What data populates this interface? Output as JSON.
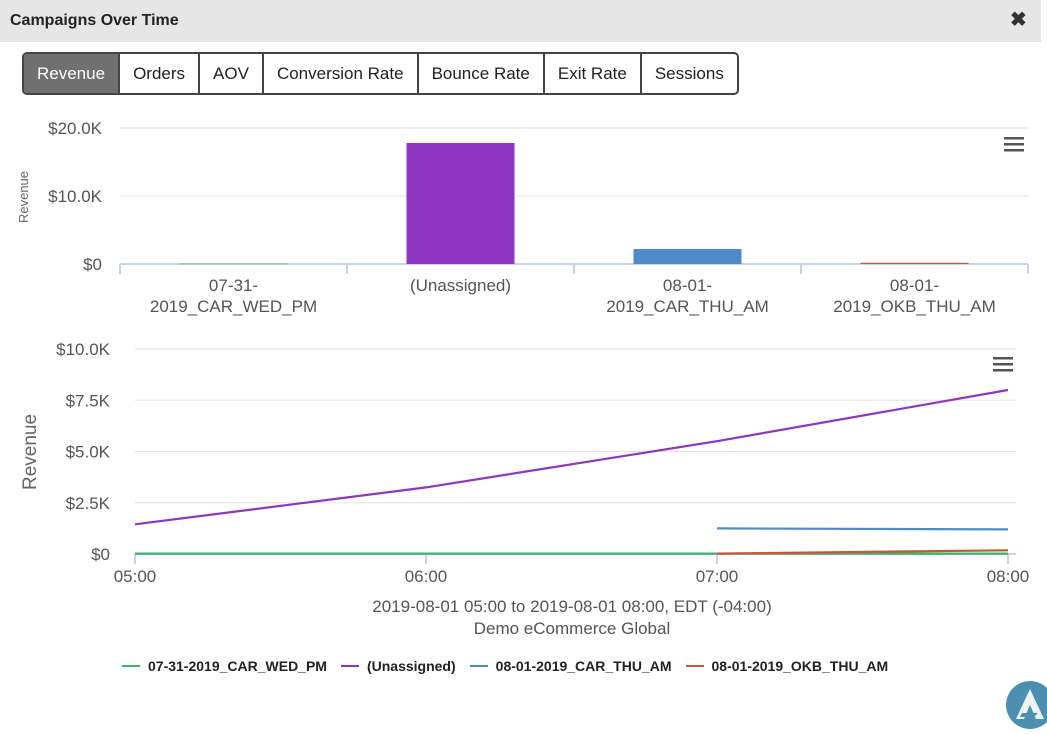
{
  "header": {
    "title": "Campaigns Over Time",
    "close_glyph": "✖"
  },
  "tabs": [
    {
      "label": "Revenue",
      "active": true
    },
    {
      "label": "Orders",
      "active": false
    },
    {
      "label": "AOV",
      "active": false
    },
    {
      "label": "Conversion Rate",
      "active": false
    },
    {
      "label": "Bounce Rate",
      "active": false
    },
    {
      "label": "Exit Rate",
      "active": false
    },
    {
      "label": "Sessions",
      "active": false
    }
  ],
  "colors": {
    "07-31-2019_CAR_WED_PM": "#3cb371",
    "(Unassigned)": "#8e35c1",
    "08-01-2019_CAR_THU_AM": "#4f8bc9",
    "08-01-2019_OKB_THU_AM": "#c8573a"
  },
  "menu_icon": "hamburger-menu-icon",
  "chart_data": [
    {
      "type": "bar",
      "ylabel": "Revenue",
      "ylim": [
        0,
        20000
      ],
      "y_ticks": [
        "$0",
        "$10.0K",
        "$20.0K"
      ],
      "categories": [
        [
          "07-31-",
          "2019_CAR_WED_PM"
        ],
        [
          "(Unassigned)"
        ],
        [
          "08-01-",
          "2019_CAR_THU_AM"
        ],
        [
          "08-01-",
          "2019_OKB_THU_AM"
        ]
      ],
      "series_keys": [
        "07-31-2019_CAR_WED_PM",
        "(Unassigned)",
        "08-01-2019_CAR_THU_AM",
        "08-01-2019_OKB_THU_AM"
      ],
      "values": [
        50,
        17800,
        2200,
        180
      ],
      "grid": true
    },
    {
      "type": "line",
      "ylabel": "Revenue",
      "ylim": [
        0,
        10000
      ],
      "y_ticks": [
        "$0",
        "$2.5K",
        "$5.0K",
        "$7.5K",
        "$10.0K"
      ],
      "x_ticks": [
        "05:00",
        "06:00",
        "07:00",
        "08:00"
      ],
      "x_range": [
        "05:00",
        "08:00"
      ],
      "xlabel": "2019-08-01 05:00 to 2019-08-01 08:00, EDT (-04:00)",
      "subtitle": "Demo eCommerce Global",
      "grid": true,
      "legend_position": "bottom",
      "series": [
        {
          "name": "07-31-2019_CAR_WED_PM",
          "x": [
            "05:00",
            "08:00"
          ],
          "values": [
            20,
            20
          ]
        },
        {
          "name": "(Unassigned)",
          "x": [
            "05:00",
            "06:00",
            "07:00",
            "08:00"
          ],
          "values": [
            1450,
            3250,
            5500,
            8000
          ]
        },
        {
          "name": "08-01-2019_CAR_THU_AM",
          "x": [
            "07:00",
            "08:00"
          ],
          "values": [
            1250,
            1200
          ]
        },
        {
          "name": "08-01-2019_OKB_THU_AM",
          "x": [
            "07:00",
            "08:00"
          ],
          "values": [
            20,
            180
          ]
        }
      ]
    }
  ]
}
